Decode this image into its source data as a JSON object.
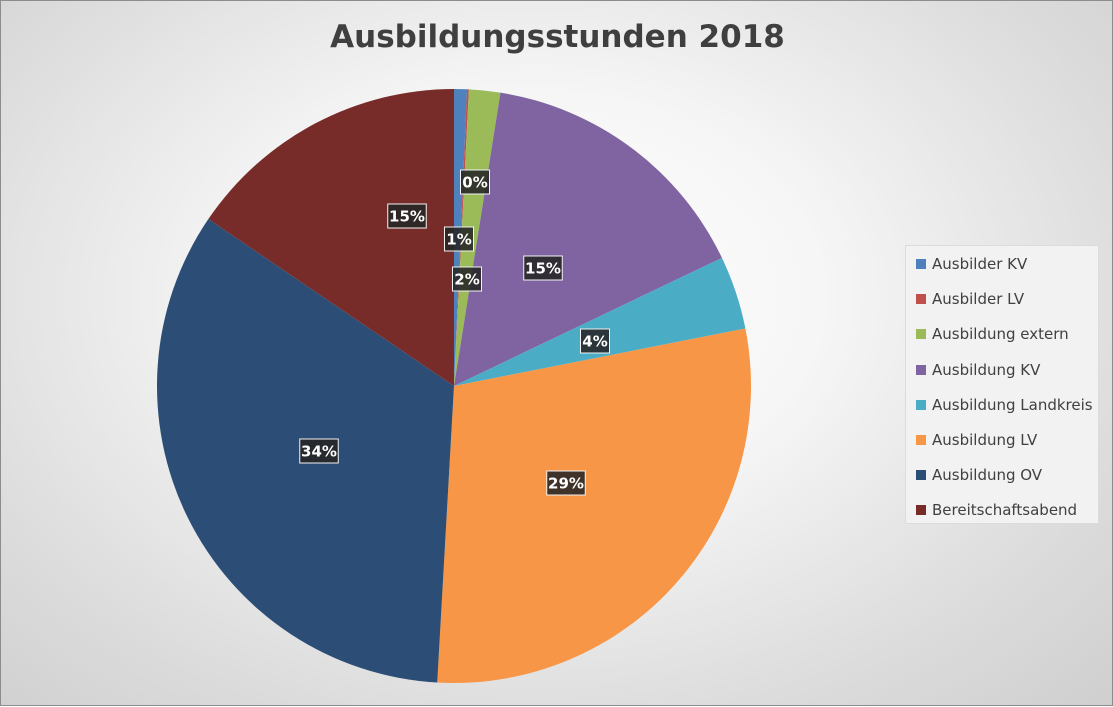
{
  "chart_data": {
    "type": "pie",
    "title": "Ausbildungsstunden 2018",
    "categories": [
      "Ausbilder KV",
      "Ausbilder LV",
      "Ausbildung extern",
      "Ausbildung KV",
      "Ausbildung Landkreis",
      "Ausbildung LV",
      "Ausbildung OV",
      "Bereitschaftsabend"
    ],
    "values": [
      0.7,
      0.1,
      1.7,
      15.4,
      4.0,
      29.0,
      33.6,
      15.5
    ],
    "labels": [
      "1%",
      "0%",
      "2%",
      "15%",
      "4%",
      "29%",
      "34%",
      "15%"
    ],
    "colors": [
      "#4f81bd",
      "#c0504d",
      "#9bbb59",
      "#8064a2",
      "#4bacc6",
      "#f79646",
      "#2c4d75",
      "#772c2a"
    ],
    "legend_position": "right"
  }
}
